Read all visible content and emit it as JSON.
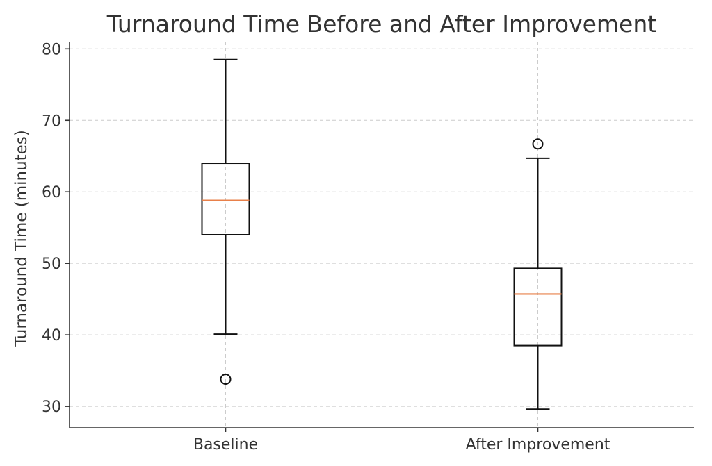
{
  "chart_data": {
    "type": "box",
    "title": "Turnaround Time Before and After Improvement",
    "xlabel": "",
    "ylabel": "Turnaround Time (minutes)",
    "ylim": [
      27,
      81
    ],
    "yticks": [
      30,
      40,
      50,
      60,
      70,
      80
    ],
    "grid": true,
    "categories": [
      "Baseline",
      "After Improvement"
    ],
    "boxes": [
      {
        "category": "Baseline",
        "whisker_low": 40.1,
        "q1": 54.0,
        "median": 58.8,
        "q3": 64.0,
        "whisker_high": 78.5,
        "outliers": [
          33.8
        ]
      },
      {
        "category": "After Improvement",
        "whisker_low": 29.6,
        "q1": 38.5,
        "median": 45.7,
        "q3": 49.3,
        "whisker_high": 64.7,
        "outliers": [
          66.7
        ]
      }
    ],
    "colors": {
      "median": "#e8804a",
      "box": "#111111",
      "grid": "#cccccc"
    }
  }
}
